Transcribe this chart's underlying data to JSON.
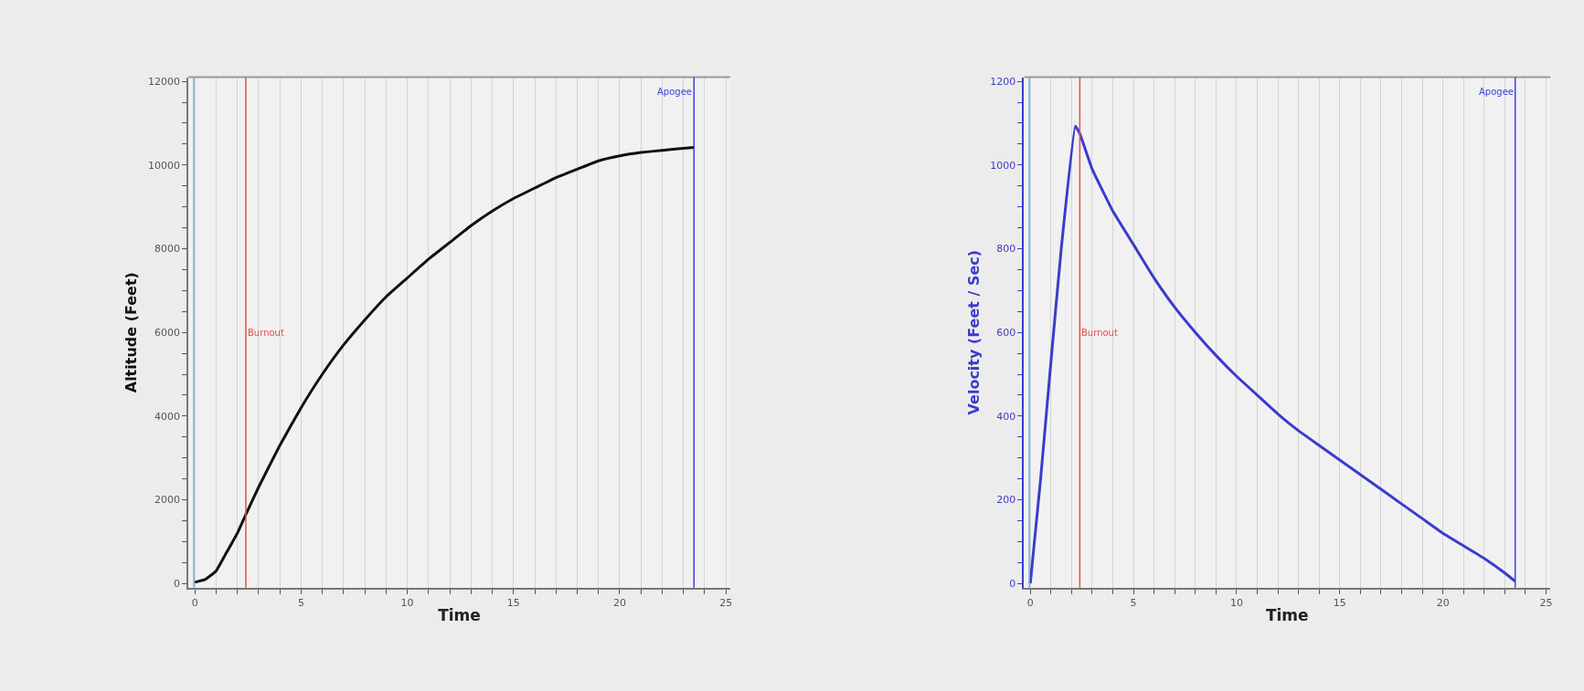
{
  "chart_data": [
    {
      "type": "line",
      "xlabel": "Time",
      "ylabel": "Altitude (Feet)",
      "grid": "x",
      "marker": "none",
      "line_style": "solid",
      "xlim": [
        -0.3,
        25.2
      ],
      "ylim": [
        -100,
        12100
      ],
      "xticks": [
        0,
        {
          "value": 1,
          "label": null
        },
        {
          "value": 2,
          "label": null
        },
        {
          "value": 3,
          "label": null
        },
        {
          "value": 4,
          "label": null
        },
        5,
        {
          "value": 6,
          "label": null
        },
        {
          "value": 7,
          "label": null
        },
        {
          "value": 8,
          "label": null
        },
        {
          "value": 9,
          "label": null
        },
        10,
        {
          "value": 11,
          "label": null
        },
        {
          "value": 12,
          "label": null
        },
        {
          "value": 13,
          "label": null
        },
        {
          "value": 14,
          "label": null
        },
        15,
        {
          "value": 16,
          "label": null
        },
        {
          "value": 17,
          "label": null
        },
        {
          "value": 18,
          "label": null
        },
        {
          "value": 19,
          "label": null
        },
        20,
        {
          "value": 21,
          "label": null
        },
        {
          "value": 22,
          "label": null
        },
        {
          "value": 23,
          "label": null
        },
        {
          "value": 24,
          "label": null
        },
        25
      ],
      "yticks": [
        0,
        {
          "value": 500,
          "label": null
        },
        {
          "value": 1000,
          "label": null
        },
        {
          "value": 1500,
          "label": null
        },
        2000,
        {
          "value": 2500,
          "label": null
        },
        {
          "value": 3000,
          "label": null
        },
        {
          "value": 3500,
          "label": null
        },
        4000,
        {
          "value": 4500,
          "label": null
        },
        {
          "value": 5000,
          "label": null
        },
        {
          "value": 5500,
          "label": null
        },
        6000,
        {
          "value": 6500,
          "label": null
        },
        {
          "value": 7000,
          "label": null
        },
        {
          "value": 7500,
          "label": null
        },
        8000,
        {
          "value": 8500,
          "label": null
        },
        {
          "value": 9000,
          "label": null
        },
        {
          "value": 9500,
          "label": null
        },
        10000,
        {
          "value": 10500,
          "label": null
        },
        {
          "value": 11000,
          "label": null
        },
        {
          "value": 11500,
          "label": null
        },
        12000
      ],
      "ref_lines": [
        {
          "axis": "x",
          "value": -0.05,
          "label": null,
          "color": "#6aaee0"
        },
        {
          "axis": "x",
          "value": 2.4,
          "label": "Burnout",
          "color": "#e05050"
        },
        {
          "axis": "x",
          "value": 23.5,
          "label": "Apogee",
          "color": "#4040e0"
        }
      ],
      "series": [
        {
          "color": "#111111",
          "x": [
            0,
            0.5,
            1,
            1.5,
            2,
            2.4,
            3,
            4,
            5,
            6,
            7,
            8,
            9,
            10,
            11,
            12,
            13,
            14,
            15,
            16,
            17,
            18,
            19,
            20,
            21,
            22,
            23,
            23.5
          ],
          "values": [
            30,
            100,
            300,
            750,
            1200,
            1650,
            2300,
            3300,
            4200,
            5000,
            5700,
            6300,
            6850,
            7300,
            7750,
            8150,
            8550,
            8900,
            9200,
            9450,
            9700,
            9900,
            10100,
            10220,
            10300,
            10350,
            10400,
            10420
          ]
        }
      ]
    },
    {
      "type": "line",
      "xlabel": "Time",
      "ylabel": "Velocity (Feet / Sec)",
      "grid": "x",
      "marker": "none",
      "line_style": "solid",
      "xlim": [
        -0.3,
        25.2
      ],
      "ylim": [
        -10,
        1210
      ],
      "xticks": [
        0,
        {
          "value": 1,
          "label": null
        },
        {
          "value": 2,
          "label": null
        },
        {
          "value": 3,
          "label": null
        },
        {
          "value": 4,
          "label": null
        },
        5,
        {
          "value": 6,
          "label": null
        },
        {
          "value": 7,
          "label": null
        },
        {
          "value": 8,
          "label": null
        },
        {
          "value": 9,
          "label": null
        },
        10,
        {
          "value": 11,
          "label": null
        },
        {
          "value": 12,
          "label": null
        },
        {
          "value": 13,
          "label": null
        },
        {
          "value": 14,
          "label": null
        },
        15,
        {
          "value": 16,
          "label": null
        },
        {
          "value": 17,
          "label": null
        },
        {
          "value": 18,
          "label": null
        },
        {
          "value": 19,
          "label": null
        },
        20,
        {
          "value": 21,
          "label": null
        },
        {
          "value": 22,
          "label": null
        },
        {
          "value": 23,
          "label": null
        },
        {
          "value": 24,
          "label": null
        },
        25
      ],
      "yticks": [
        0,
        {
          "value": 50,
          "label": null
        },
        {
          "value": 100,
          "label": null
        },
        {
          "value": 150,
          "label": null
        },
        200,
        {
          "value": 250,
          "label": null
        },
        {
          "value": 300,
          "label": null
        },
        {
          "value": 350,
          "label": null
        },
        400,
        {
          "value": 450,
          "label": null
        },
        {
          "value": 500,
          "label": null
        },
        {
          "value": 550,
          "label": null
        },
        600,
        {
          "value": 650,
          "label": null
        },
        {
          "value": 700,
          "label": null
        },
        {
          "value": 750,
          "label": null
        },
        800,
        {
          "value": 850,
          "label": null
        },
        {
          "value": 900,
          "label": null
        },
        {
          "value": 950,
          "label": null
        },
        1000,
        {
          "value": 1050,
          "label": null
        },
        {
          "value": 1100,
          "label": null
        },
        {
          "value": 1150,
          "label": null
        },
        1200
      ],
      "ref_lines": [
        {
          "axis": "x",
          "value": -0.05,
          "label": null,
          "color": "#6aaee0"
        },
        {
          "axis": "x",
          "value": 2.4,
          "label": "Burnout",
          "color": "#e05050"
        },
        {
          "axis": "x",
          "value": 23.5,
          "label": "Apogee",
          "color": "#4040e0"
        }
      ],
      "series": [
        {
          "color": "#3b3bcc",
          "x": [
            0,
            0.5,
            1,
            1.5,
            2.18,
            2.4,
            3,
            4,
            5,
            6,
            7,
            8,
            9,
            10,
            11,
            12,
            13,
            14,
            15,
            16,
            17,
            18,
            19,
            20,
            21,
            22,
            23,
            23.5
          ],
          "values": [
            0,
            250,
            530,
            800,
            1093,
            1075,
            990,
            890,
            810,
            730,
            660,
            600,
            545,
            495,
            450,
            405,
            365,
            330,
            295,
            260,
            225,
            190,
            155,
            120,
            90,
            60,
            25,
            5
          ]
        }
      ]
    }
  ]
}
